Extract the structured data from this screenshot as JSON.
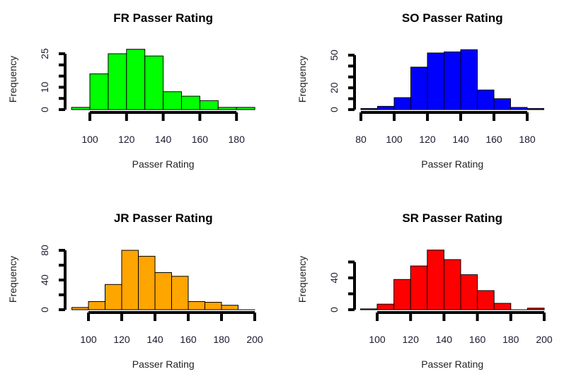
{
  "chart_data": [
    {
      "type": "bar",
      "title": "FR Passer Rating",
      "xlabel": "Passer Rating",
      "ylabel": "Frequency",
      "bin_edges": [
        90,
        100,
        110,
        120,
        130,
        140,
        150,
        160,
        170,
        180,
        190
      ],
      "values": [
        1,
        16,
        25,
        27,
        24,
        8,
        6,
        4,
        1,
        1
      ],
      "color": "#00FF00",
      "xticks": [
        100,
        120,
        140,
        160,
        180
      ],
      "yticks": [
        0,
        5,
        10,
        15,
        20,
        25
      ],
      "ytick_labels": [
        "0",
        "",
        "10",
        "",
        "",
        "25"
      ],
      "ylim": [
        0,
        25
      ],
      "grid": false
    },
    {
      "type": "bar",
      "title": "SO Passer Rating",
      "xlabel": "Passer Rating",
      "ylabel": "Frequency",
      "bin_edges": [
        80,
        90,
        100,
        110,
        120,
        130,
        140,
        150,
        160,
        170,
        180,
        190
      ],
      "values": [
        1,
        3,
        11,
        39,
        52,
        53,
        55,
        18,
        10,
        2,
        1
      ],
      "color": "#0000FF",
      "xticks": [
        80,
        100,
        120,
        140,
        160,
        180
      ],
      "yticks": [
        0,
        10,
        20,
        30,
        40,
        50
      ],
      "ytick_labels": [
        "0",
        "",
        "20",
        "",
        "",
        "50"
      ],
      "ylim": [
        0,
        50
      ],
      "grid": false
    },
    {
      "type": "bar",
      "title": "JR Passer Rating",
      "xlabel": "Passer Rating",
      "ylabel": "Frequency",
      "bin_edges": [
        90,
        100,
        110,
        120,
        130,
        140,
        150,
        160,
        170,
        180,
        190,
        200
      ],
      "values": [
        3,
        11,
        34,
        80,
        72,
        50,
        45,
        11,
        10,
        6,
        0
      ],
      "color": "#FFA500",
      "xticks": [
        100,
        120,
        140,
        160,
        180,
        200
      ],
      "yticks": [
        0,
        20,
        40,
        60,
        80
      ],
      "ytick_labels": [
        "0",
        "",
        "40",
        "",
        "80"
      ],
      "ylim": [
        0,
        80
      ],
      "grid": false
    },
    {
      "type": "bar",
      "title": "SR Passer Rating",
      "xlabel": "Passer Rating",
      "ylabel": "Frequency",
      "bin_edges": [
        90,
        100,
        110,
        120,
        130,
        140,
        150,
        160,
        170,
        180,
        190,
        200
      ],
      "values": [
        1,
        7,
        38,
        55,
        75,
        63,
        44,
        24,
        8,
        0,
        2
      ],
      "color": "#FF0000",
      "xticks": [
        100,
        120,
        140,
        160,
        180,
        200
      ],
      "yticks": [
        0,
        20,
        40,
        60
      ],
      "ytick_labels": [
        "0",
        "",
        "40",
        ""
      ],
      "ylim": [
        0,
        60
      ],
      "grid": false
    }
  ]
}
